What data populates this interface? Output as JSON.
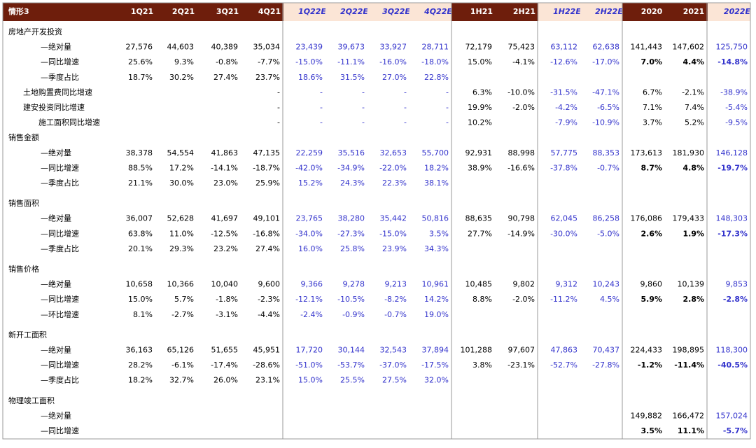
{
  "table": {
    "corner": "情形3",
    "columns": [
      "1Q21",
      "2Q21",
      "3Q21",
      "4Q21",
      "1Q22E",
      "2Q22E",
      "3Q22E",
      "4Q22E",
      "1H21",
      "2H21",
      "1H22E",
      "2H22E",
      "2020",
      "2021",
      "2022E"
    ],
    "forecast_columns": [
      4,
      5,
      6,
      7,
      10,
      11,
      14
    ],
    "rows": [
      {
        "label": "房地产开发投资",
        "cells": [
          null,
          null,
          null,
          null,
          null,
          null,
          null,
          null,
          null,
          null,
          null,
          null,
          null,
          null,
          null
        ]
      },
      {
        "label": "—绝对量",
        "cells": [
          "27,576",
          "44,603",
          "40,389",
          "35,034",
          "23,439",
          "39,673",
          "33,927",
          "28,711",
          "72,179",
          "75,423",
          "63,112",
          "62,638",
          "141,443",
          "147,602",
          "125,750"
        ]
      },
      {
        "label": "—同比增速",
        "bold_annual": true,
        "cells": [
          "25.6%",
          "9.3%",
          "-0.8%",
          "-7.7%",
          "-15.0%",
          "-11.1%",
          "-16.0%",
          "-18.0%",
          "15.0%",
          "-4.1%",
          "-12.6%",
          "-17.0%",
          "7.0%",
          "4.4%",
          "-14.8%"
        ]
      },
      {
        "label": "—季度占比",
        "cells": [
          "18.7%",
          "30.2%",
          "27.4%",
          "23.7%",
          "18.6%",
          "31.5%",
          "27.0%",
          "22.8%",
          null,
          null,
          null,
          null,
          null,
          null,
          null
        ]
      },
      {
        "label": "土地购置费同比增速",
        "cells": [
          null,
          null,
          null,
          "-",
          "-",
          "-",
          "-",
          "-",
          "6.3%",
          "-10.0%",
          "-31.5%",
          "-47.1%",
          "6.7%",
          "-2.1%",
          "-38.9%"
        ]
      },
      {
        "label": "建安投资同比增速",
        "cells": [
          null,
          null,
          null,
          "-",
          "-",
          "-",
          "-",
          "-",
          "19.9%",
          "-2.0%",
          "-4.2%",
          "-6.5%",
          "7.1%",
          "7.4%",
          "-5.4%"
        ]
      },
      {
        "label": "施工面积同比增速",
        "cells": [
          null,
          null,
          null,
          "-",
          "-",
          "-",
          "-",
          "-",
          "10.2%",
          null,
          "-7.9%",
          "-10.9%",
          "3.7%",
          "5.2%",
          "-9.5%"
        ]
      },
      {
        "label": "销售金额",
        "cells": [
          null,
          null,
          null,
          null,
          null,
          null,
          null,
          null,
          null,
          null,
          null,
          null,
          null,
          null,
          null
        ]
      },
      {
        "label": "—绝对量",
        "cells": [
          "38,378",
          "54,554",
          "41,863",
          "47,135",
          "22,259",
          "35,516",
          "32,653",
          "55,700",
          "92,931",
          "88,998",
          "57,775",
          "88,353",
          "173,613",
          "181,930",
          "146,128"
        ]
      },
      {
        "label": "—同比增速",
        "bold_annual": true,
        "cells": [
          "88.5%",
          "17.2%",
          "-14.1%",
          "-18.7%",
          "-42.0%",
          "-34.9%",
          "-22.0%",
          "18.2%",
          "38.9%",
          "-16.6%",
          "-37.8%",
          "-0.7%",
          "8.7%",
          "4.8%",
          "-19.7%"
        ]
      },
      {
        "label": "—季度占比",
        "cells": [
          "21.1%",
          "30.0%",
          "23.0%",
          "25.9%",
          "15.2%",
          "24.3%",
          "22.3%",
          "38.1%",
          null,
          null,
          null,
          null,
          null,
          null,
          null
        ]
      },
      {
        "label": "销售面积",
        "cells": [
          null,
          null,
          null,
          null,
          null,
          null,
          null,
          null,
          null,
          null,
          null,
          null,
          null,
          null,
          null
        ]
      },
      {
        "label": "—绝对量",
        "cells": [
          "36,007",
          "52,628",
          "41,697",
          "49,101",
          "23,765",
          "38,280",
          "35,442",
          "50,816",
          "88,635",
          "90,798",
          "62,045",
          "86,258",
          "176,086",
          "179,433",
          "148,303"
        ]
      },
      {
        "label": "—同比增速",
        "bold_annual": true,
        "cells": [
          "63.8%",
          "11.0%",
          "-12.5%",
          "-16.8%",
          "-34.0%",
          "-27.3%",
          "-15.0%",
          "3.5%",
          "27.7%",
          "-14.9%",
          "-30.0%",
          "-5.0%",
          "2.6%",
          "1.9%",
          "-17.3%"
        ]
      },
      {
        "label": "—季度占比",
        "cells": [
          "20.1%",
          "29.3%",
          "23.2%",
          "27.4%",
          "16.0%",
          "25.8%",
          "23.9%",
          "34.3%",
          null,
          null,
          null,
          null,
          null,
          null,
          null
        ]
      },
      {
        "label": "销售价格",
        "cells": [
          null,
          null,
          null,
          null,
          null,
          null,
          null,
          null,
          null,
          null,
          null,
          null,
          null,
          null,
          null
        ]
      },
      {
        "label": "—绝对量",
        "cells": [
          "10,658",
          "10,366",
          "10,040",
          "9,600",
          "9,366",
          "9,278",
          "9,213",
          "10,961",
          "10,485",
          "9,802",
          "9,312",
          "10,243",
          "9,860",
          "10,139",
          "9,853"
        ]
      },
      {
        "label": "—同比增速",
        "bold_annual": true,
        "cells": [
          "15.0%",
          "5.7%",
          "-1.8%",
          "-2.3%",
          "-12.1%",
          "-10.5%",
          "-8.2%",
          "14.2%",
          "8.8%",
          "-2.0%",
          "-11.2%",
          "4.5%",
          "5.9%",
          "2.8%",
          "-2.8%"
        ]
      },
      {
        "label": "—环比增速",
        "cells": [
          "8.1%",
          "-2.7%",
          "-3.1%",
          "-4.4%",
          "-2.4%",
          "-0.9%",
          "-0.7%",
          "19.0%",
          null,
          null,
          null,
          null,
          null,
          null,
          null
        ]
      },
      {
        "label": "新开工面积",
        "cells": [
          null,
          null,
          null,
          null,
          null,
          null,
          null,
          null,
          null,
          null,
          null,
          null,
          null,
          null,
          null
        ]
      },
      {
        "label": "—绝对量",
        "cells": [
          "36,163",
          "65,126",
          "51,655",
          "45,951",
          "17,720",
          "30,144",
          "32,543",
          "37,894",
          "101,288",
          "97,607",
          "47,863",
          "70,437",
          "224,433",
          "198,895",
          "118,300"
        ]
      },
      {
        "label": "—同比增速",
        "bold_annual": true,
        "cells": [
          "28.2%",
          "-6.1%",
          "-17.4%",
          "-28.6%",
          "-51.0%",
          "-53.7%",
          "-37.0%",
          "-17.5%",
          "3.8%",
          "-23.1%",
          "-52.7%",
          "-27.8%",
          "-1.2%",
          "-11.4%",
          "-40.5%"
        ]
      },
      {
        "label": "—季度占比",
        "cells": [
          "18.2%",
          "32.7%",
          "26.0%",
          "23.1%",
          "15.0%",
          "25.5%",
          "27.5%",
          "32.0%",
          null,
          null,
          null,
          null,
          null,
          null,
          null
        ]
      },
      {
        "label": "物理竣工面积",
        "cells": [
          null,
          null,
          null,
          null,
          null,
          null,
          null,
          null,
          null,
          null,
          null,
          null,
          null,
          null,
          null
        ]
      },
      {
        "label": "—绝对量",
        "cells": [
          null,
          null,
          null,
          null,
          null,
          null,
          null,
          null,
          null,
          null,
          null,
          null,
          "149,882",
          "166,472",
          "157,024"
        ]
      },
      {
        "label": "—同比增速",
        "bold_annual": true,
        "cells": [
          null,
          null,
          null,
          null,
          null,
          null,
          null,
          null,
          null,
          null,
          null,
          null,
          "3.5%",
          "11.1%",
          "-5.7%"
        ]
      }
    ]
  }
}
